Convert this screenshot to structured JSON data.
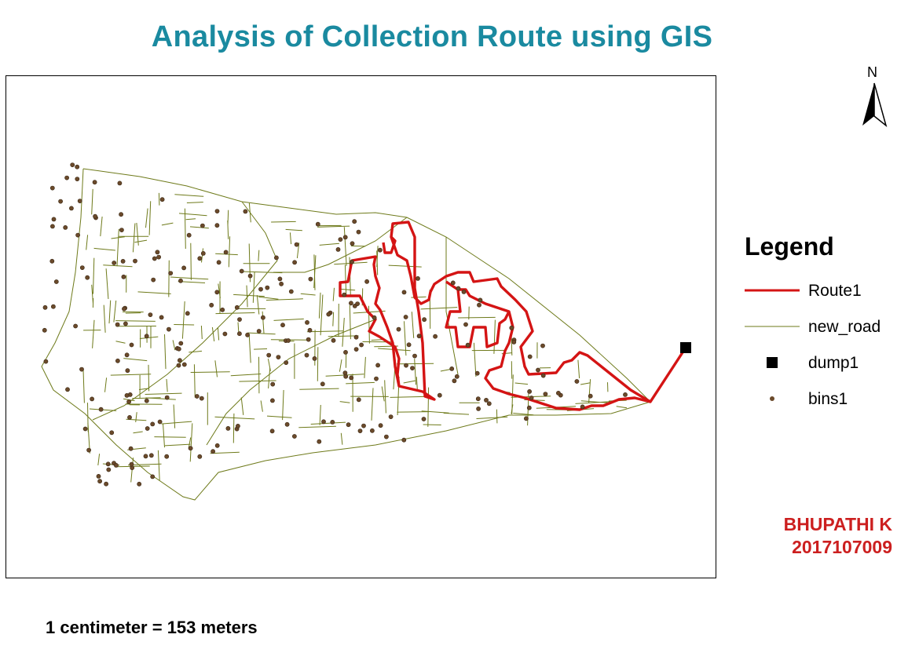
{
  "title": "Analysis of Collection Route using GIS",
  "scale_text": "1 centimeter = 153 meters",
  "north_label": "N",
  "legend": {
    "title": "Legend",
    "items": [
      {
        "label": "Route1",
        "symbol": "red-line-icon"
      },
      {
        "label": "new_road",
        "symbol": "olive-line-icon"
      },
      {
        "label": "dump1",
        "symbol": "black-square-icon"
      },
      {
        "label": "bins1",
        "symbol": "brown-dot-icon"
      }
    ]
  },
  "author": {
    "name": "BHUPATHI K",
    "id": "2017107009"
  },
  "colors": {
    "title": "#1a8aa0",
    "route": "#d41414",
    "road": "#6e7a1a",
    "bin": "#6b4a2b",
    "dump": "#000000",
    "author": "#cc1f1f"
  }
}
